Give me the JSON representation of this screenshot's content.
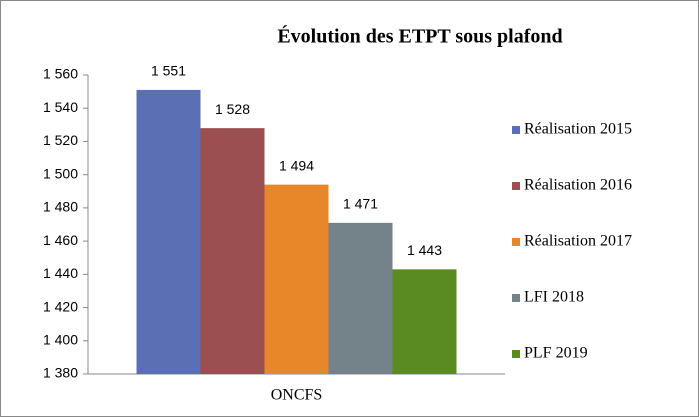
{
  "chart_data": {
    "type": "bar",
    "title": "Évolution des ETPT sous plafond",
    "categories": [
      "ONCFS"
    ],
    "series": [
      {
        "name": "Réalisation 2015",
        "color": "#5b6fb5",
        "values": [
          1551
        ],
        "value_labels": [
          "1 551"
        ]
      },
      {
        "name": "Réalisation 2016",
        "color": "#9b4f50",
        "values": [
          1528
        ],
        "value_labels": [
          "1 528"
        ]
      },
      {
        "name": "Réalisation 2017",
        "color": "#e8862a",
        "values": [
          1494
        ],
        "value_labels": [
          "1 494"
        ]
      },
      {
        "name": "LFI 2018",
        "color": "#74838a",
        "values": [
          1471
        ],
        "value_labels": [
          "1 471"
        ]
      },
      {
        "name": "PLF 2019",
        "color": "#5a8a22",
        "values": [
          1443
        ],
        "value_labels": [
          "1 443"
        ]
      }
    ],
    "ylim": [
      1380,
      1560
    ],
    "yticks": [
      {
        "value": 1380,
        "label": "1 380"
      },
      {
        "value": 1400,
        "label": "1 400"
      },
      {
        "value": 1420,
        "label": "1 420"
      },
      {
        "value": 1440,
        "label": "1 440"
      },
      {
        "value": 1460,
        "label": "1 460"
      },
      {
        "value": 1480,
        "label": "1 480"
      },
      {
        "value": 1500,
        "label": "1 500"
      },
      {
        "value": 1520,
        "label": "1 520"
      },
      {
        "value": 1540,
        "label": "1 540"
      },
      {
        "value": 1560,
        "label": "1 560"
      }
    ],
    "legend": "right",
    "grid": false
  }
}
